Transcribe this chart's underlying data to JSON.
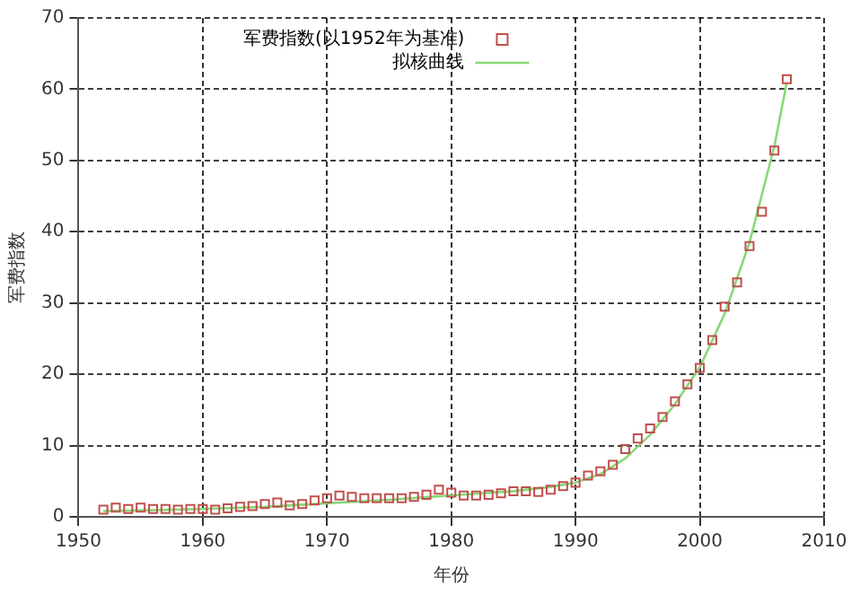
{
  "chart_data": {
    "type": "scatter",
    "xlabel": "年份",
    "ylabel": "军费指数",
    "xlim": [
      1950,
      2010
    ],
    "xticks": [
      1950,
      1960,
      1970,
      1980,
      1990,
      2000,
      2010
    ],
    "ylim": [
      0,
      70
    ],
    "yticks": [
      0,
      10,
      20,
      30,
      40,
      50,
      60,
      70
    ],
    "grid": true,
    "legend": "top",
    "series": [
      {
        "name": "军费指数(以1952年为基准)",
        "type": "scatter",
        "marker": "square",
        "color": "#c0504d",
        "x": [
          1952,
          1953,
          1954,
          1955,
          1956,
          1957,
          1958,
          1959,
          1960,
          1961,
          1962,
          1963,
          1964,
          1965,
          1966,
          1967,
          1968,
          1969,
          1970,
          1971,
          1972,
          1973,
          1974,
          1975,
          1976,
          1977,
          1978,
          1979,
          1980,
          1981,
          1982,
          1983,
          1984,
          1985,
          1986,
          1987,
          1988,
          1989,
          1990,
          1991,
          1992,
          1993,
          1994,
          1995,
          1996,
          1997,
          1998,
          1999,
          2000,
          2001,
          2002,
          2003,
          2004,
          2005,
          2006,
          2007
        ],
        "values": [
          1.0,
          1.3,
          1.1,
          1.3,
          1.1,
          1.1,
          1.0,
          1.1,
          1.1,
          1.0,
          1.2,
          1.4,
          1.5,
          1.8,
          2.0,
          1.6,
          1.8,
          2.3,
          2.6,
          3.0,
          2.8,
          2.6,
          2.6,
          2.6,
          2.6,
          2.8,
          3.1,
          3.8,
          3.4,
          3.0,
          3.0,
          3.1,
          3.3,
          3.6,
          3.6,
          3.5,
          3.8,
          4.3,
          4.8,
          5.8,
          6.4,
          7.3,
          9.5,
          11.0,
          12.4,
          14.0,
          16.2,
          18.6,
          20.9,
          24.8,
          29.5,
          32.9,
          38.0,
          42.8,
          51.4,
          61.4
        ]
      },
      {
        "name": "拟核曲线",
        "type": "line",
        "marker": "none",
        "color": "#88d878",
        "x": [
          1952,
          1955,
          1960,
          1965,
          1970,
          1975,
          1980,
          1985,
          1988,
          1990,
          1992,
          1994,
          1996,
          1998,
          2000,
          2002,
          2004,
          2006,
          2007
        ],
        "values": [
          0.8,
          0.9,
          1.1,
          1.4,
          1.9,
          2.4,
          3.0,
          3.6,
          4.2,
          4.8,
          6.0,
          8.2,
          11.5,
          15.8,
          21.0,
          28.5,
          38.5,
          52.0,
          61.0
        ]
      }
    ]
  }
}
